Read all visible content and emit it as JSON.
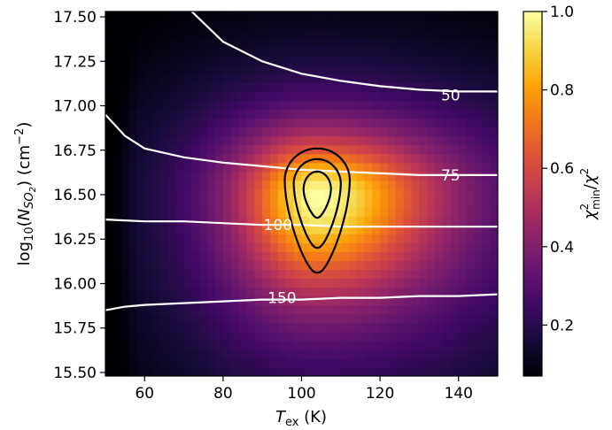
{
  "chart_data": {
    "type": "heatmap",
    "xlabel": "T_ex (K)",
    "ylabel": "log10(N_SO2) (cm^-2)",
    "colorbar_label": "χ²_min/χ²",
    "xlim": [
      50,
      150
    ],
    "ylim": [
      15.48,
      17.53
    ],
    "x_ticks": [
      60,
      80,
      100,
      120,
      140
    ],
    "y_ticks": [
      15.5,
      15.75,
      16.0,
      16.25,
      16.5,
      16.75,
      17.0,
      17.25,
      17.5
    ],
    "x_tick_labels": [
      "60",
      "80",
      "100",
      "120",
      "140"
    ],
    "y_tick_labels": [
      "15.50",
      "15.75",
      "16.00",
      "16.25",
      "16.50",
      "16.75",
      "17.00",
      "17.25",
      "17.50"
    ],
    "colorbar_range": [
      0.07,
      1.0
    ],
    "colorbar_ticks": [
      0.2,
      0.4,
      0.6,
      0.8,
      1.0
    ],
    "colorbar_tick_labels": [
      "0.2",
      "0.4",
      "0.6",
      "0.8",
      "1.0"
    ],
    "colormap": "inferno",
    "peak": {
      "x": 104,
      "y": 16.49
    },
    "white_contours": [
      {
        "label": "50",
        "label_at": {
          "x": 138,
          "y": 17.06
        },
        "points": [
          [
            72,
            17.53
          ],
          [
            80,
            17.36
          ],
          [
            90,
            17.25
          ],
          [
            100,
            17.18
          ],
          [
            110,
            17.14
          ],
          [
            120,
            17.11
          ],
          [
            130,
            17.09
          ],
          [
            140,
            17.08
          ],
          [
            150,
            17.08
          ]
        ]
      },
      {
        "label": "75",
        "label_at": {
          "x": 138,
          "y": 16.61
        },
        "points": [
          [
            50,
            16.95
          ],
          [
            55,
            16.83
          ],
          [
            60,
            16.76
          ],
          [
            70,
            16.71
          ],
          [
            80,
            16.68
          ],
          [
            90,
            16.66
          ],
          [
            100,
            16.64
          ],
          [
            110,
            16.63
          ],
          [
            120,
            16.62
          ],
          [
            130,
            16.61
          ],
          [
            140,
            16.61
          ],
          [
            150,
            16.61
          ]
        ]
      },
      {
        "label": "100",
        "label_at": {
          "x": 94,
          "y": 16.33
        },
        "points": [
          [
            50,
            16.36
          ],
          [
            60,
            16.35
          ],
          [
            70,
            16.35
          ],
          [
            80,
            16.34
          ],
          [
            90,
            16.33
          ],
          [
            100,
            16.33
          ],
          [
            110,
            16.32
          ],
          [
            120,
            16.32
          ],
          [
            130,
            16.32
          ],
          [
            140,
            16.32
          ],
          [
            150,
            16.32
          ]
        ]
      },
      {
        "label": "150",
        "label_at": {
          "x": 95,
          "y": 15.92
        },
        "points": [
          [
            50,
            15.85
          ],
          [
            55,
            15.87
          ],
          [
            60,
            15.88
          ],
          [
            70,
            15.89
          ],
          [
            80,
            15.9
          ],
          [
            90,
            15.91
          ],
          [
            100,
            15.91
          ],
          [
            110,
            15.92
          ],
          [
            120,
            15.92
          ],
          [
            130,
            15.93
          ],
          [
            140,
            15.93
          ],
          [
            150,
            15.94
          ]
        ]
      }
    ],
    "black_contours": [
      {
        "cx": 104,
        "top": 16.76,
        "bottom": 16.06,
        "halfwidth": 8.3,
        "widest_at": 16.58
      },
      {
        "cx": 104,
        "top": 16.7,
        "bottom": 16.2,
        "halfwidth": 6.0,
        "widest_at": 16.56
      },
      {
        "cx": 104,
        "top": 16.63,
        "bottom": 16.37,
        "halfwidth": 3.5,
        "widest_at": 16.53
      }
    ]
  }
}
